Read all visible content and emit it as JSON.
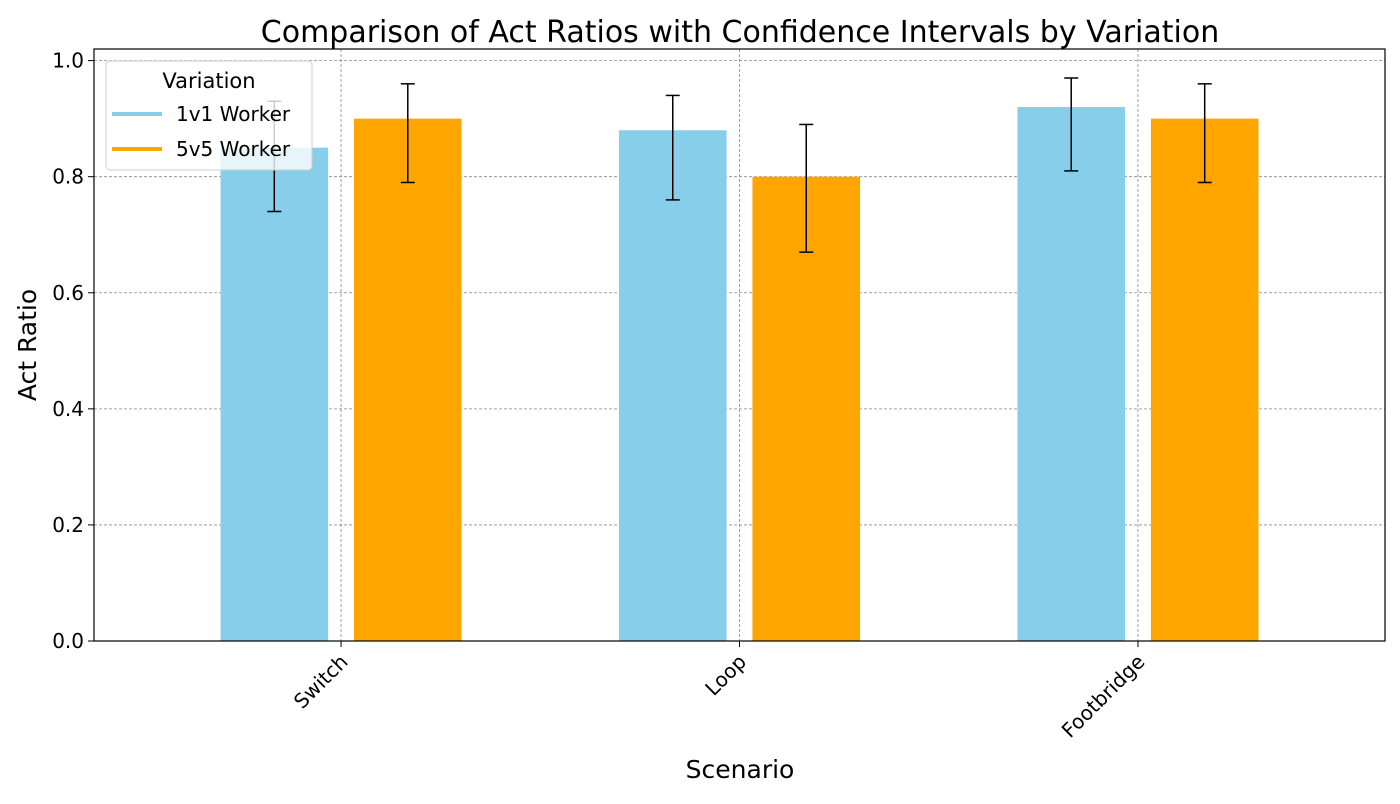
{
  "chart_data": {
    "type": "bar",
    "title": "Comparison of Act Ratios with Confidence Intervals by Variation",
    "xlabel": "Scenario",
    "ylabel": "Act Ratio",
    "categories": [
      "Switch",
      "Loop",
      "Footbridge"
    ],
    "series": [
      {
        "name": "1v1 Worker",
        "color": "#87CEEB",
        "values": [
          0.85,
          0.88,
          0.92
        ],
        "ci_lower": [
          0.74,
          0.76,
          0.81
        ],
        "ci_upper": [
          0.93,
          0.94,
          0.97
        ]
      },
      {
        "name": "5v5 Worker",
        "color": "#FFA500",
        "values": [
          0.9,
          0.8,
          0.9
        ],
        "ci_lower": [
          0.79,
          0.67,
          0.79
        ],
        "ci_upper": [
          0.96,
          0.89,
          0.96
        ]
      }
    ],
    "ylim": [
      0,
      1.02
    ],
    "yticks": [
      0.0,
      0.2,
      0.4,
      0.6,
      0.8,
      1.0
    ],
    "ytick_labels": [
      "0.0",
      "0.2",
      "0.4",
      "0.6",
      "0.8",
      "1.0"
    ],
    "grid": true,
    "legend": {
      "title": "Variation",
      "placement": "top-left"
    },
    "xtick_rotation": 45
  }
}
